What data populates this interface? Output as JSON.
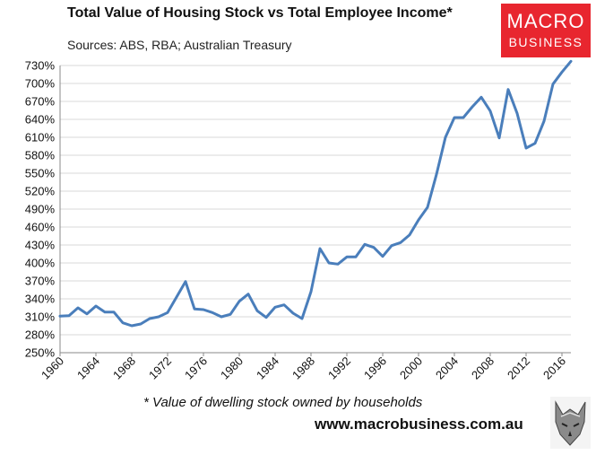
{
  "title": "Total Value of Housing Stock vs Total Employee Income*",
  "subtitle": "Sources: ABS, RBA; Australian Treasury",
  "logo": {
    "line1": "MACRO",
    "line2": "BUSINESS",
    "color": "#e8262f"
  },
  "footnote": "* Value of dwelling stock owned by households",
  "website": "www.macrobusiness.com.au",
  "chart_data": {
    "type": "line",
    "title": "Total Value of Housing Stock vs Total Employee Income*",
    "xlabel": "",
    "ylabel": "",
    "ylim": [
      250,
      730
    ],
    "xlim": [
      1960,
      2017
    ],
    "y_ticks": [
      "730%",
      "700%",
      "670%",
      "640%",
      "610%",
      "580%",
      "550%",
      "520%",
      "490%",
      "460%",
      "430%",
      "400%",
      "370%",
      "340%",
      "310%",
      "280%",
      "250%"
    ],
    "x_ticks": [
      "1960",
      "1964",
      "1968",
      "1972",
      "1976",
      "1980",
      "1984",
      "1988",
      "1992",
      "1996",
      "2000",
      "2004",
      "2008",
      "2012",
      "2016"
    ],
    "grid": "horizontal",
    "line_color": "#4a7ebb",
    "series": [
      {
        "x": [
          1960,
          1961,
          1962,
          1963,
          1964,
          1965,
          1966,
          1967,
          1968,
          1969,
          1970,
          1971,
          1972,
          1973,
          1974,
          1975,
          1976,
          1977,
          1978,
          1979,
          1980,
          1981,
          1982,
          1983,
          1984,
          1985,
          1986,
          1987,
          1988,
          1989,
          1990,
          1991,
          1992,
          1993,
          1994,
          1995,
          1996,
          1997,
          1998,
          1999,
          2000,
          2001,
          2002,
          2003,
          2004,
          2005,
          2006,
          2007,
          2008,
          2009,
          2010,
          2011,
          2012,
          2013,
          2014,
          2015,
          2016,
          2017
        ],
        "values": [
          311,
          312,
          325,
          315,
          328,
          318,
          318,
          300,
          295,
          298,
          307,
          310,
          317,
          343,
          369,
          323,
          322,
          317,
          310,
          314,
          336,
          348,
          320,
          309,
          326,
          330,
          316,
          307,
          352,
          424,
          400,
          398,
          410,
          410,
          431,
          426,
          411,
          429,
          434,
          447,
          472,
          493,
          548,
          610,
          643,
          643,
          661,
          677,
          654,
          609,
          690,
          650,
          592,
          600,
          637,
          699,
          719,
          737
        ]
      }
    ]
  }
}
